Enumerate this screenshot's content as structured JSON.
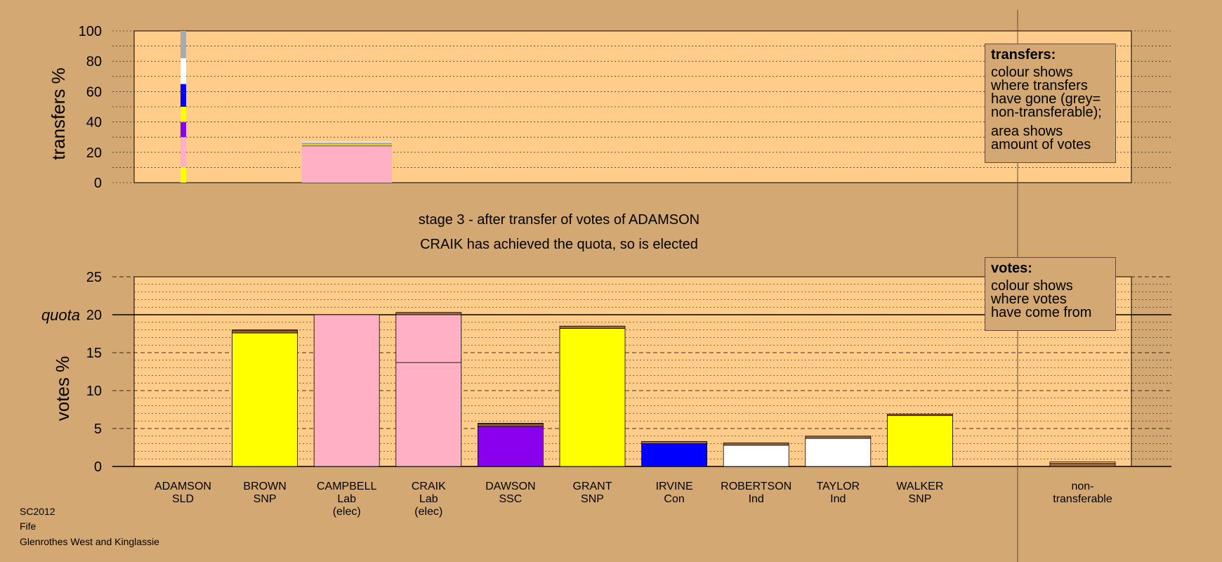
{
  "meta": {
    "code": "SC2012",
    "council": "Fife",
    "ward": "Glenrothes West and Kinglassie"
  },
  "stage_title": "stage 3 - after transfer of votes of ADAMSON",
  "stage_subtitle": "CRAIK has achieved the quota, so is elected",
  "legend_transfers": {
    "title": "transfers:",
    "lines": [
      "colour shows",
      "where transfers",
      "have gone (grey=",
      "non-transferable);"
    ],
    "lines2": [
      "area shows",
      "amount of votes"
    ]
  },
  "legend_votes": {
    "title": "votes:",
    "lines": [
      "colour shows",
      "where votes",
      "have come from"
    ]
  },
  "colors": {
    "background": "#d4a872",
    "plot": "#ffcc8a",
    "SLD": "#ffff00",
    "Lab": "#ffb0c4",
    "SNP": "#ffff00",
    "SSC": "#8800ee",
    "Con": "#0000ff",
    "Ind": "#ffffff",
    "nontransferable": "#aaaaaa",
    "carry": "#a86838"
  },
  "chart_data": [
    {
      "type": "bar",
      "ylabel": "transfers %",
      "ylim": [
        0,
        100
      ],
      "yticks": [
        0,
        20,
        40,
        60,
        80,
        100
      ],
      "transfer_strip": [
        {
          "to": "GRANT",
          "color": "#ffff00",
          "from": 0,
          "to_pct": 10
        },
        {
          "to": "CAMPBELL",
          "color": "#ffb0c4",
          "from": 10,
          "to_pct": 30
        },
        {
          "to": "DAWSON",
          "color": "#8800ee",
          "from": 30,
          "to_pct": 40
        },
        {
          "to": "BROWN",
          "color": "#ffff00",
          "from": 40,
          "to_pct": 50
        },
        {
          "to": "IRVINE",
          "color": "#0000ff",
          "from": 50,
          "to_pct": 65
        },
        {
          "to": "ROBERTSON",
          "color": "#ffffff",
          "from": 65,
          "to_pct": 74
        },
        {
          "to": "TAYLOR",
          "color": "#ffffff",
          "from": 74,
          "to_pct": 82
        },
        {
          "to": "non-transferable",
          "color": "#aaaaaa",
          "from": 82,
          "to_pct": 100
        }
      ],
      "transfer_block": {
        "position": "CAMPBELL",
        "segments": [
          {
            "color": "#ffb0c4",
            "value": 24
          },
          {
            "color": "#8800ee",
            "value": 0.5
          },
          {
            "color": "#ffff00",
            "value": 0.5
          },
          {
            "color": "#aaaaaa",
            "value": 1.5
          },
          {
            "color": "#ffffff",
            "value": 0.5
          }
        ]
      }
    },
    {
      "type": "bar",
      "ylabel": "votes %",
      "ylim": [
        0,
        25
      ],
      "yticks": [
        0,
        5,
        10,
        15,
        20,
        25
      ],
      "quota": 20,
      "quota_label": "quota",
      "candidates": [
        {
          "name": "ADAMSON",
          "party": "SLD",
          "note": "",
          "segments": []
        },
        {
          "name": "BROWN",
          "party": "SNP",
          "note": "",
          "segments": [
            {
              "color": "#ffff00",
              "value": 17.6
            },
            {
              "color": "#a86838",
              "value": 0.3
            },
            {
              "color": "#ffcc8a",
              "value": 0.1
            }
          ]
        },
        {
          "name": "CAMPBELL",
          "party": "Lab",
          "note": "(elec)",
          "segments": [
            {
              "color": "#ffb0c4",
              "value": 20.0
            }
          ]
        },
        {
          "name": "CRAIK",
          "party": "Lab",
          "note": "(elec)",
          "segments": [
            {
              "color": "#ffb0c4",
              "value": 13.7
            },
            {
              "color": "#ffb0c4",
              "value": 6.3
            },
            {
              "color": "#a86838",
              "value": 0.3
            }
          ]
        },
        {
          "name": "DAWSON",
          "party": "SSC",
          "note": "",
          "segments": [
            {
              "color": "#8800ee",
              "value": 5.3
            },
            {
              "color": "#a86838",
              "value": 0.3
            },
            {
              "color": "#ffcc8a",
              "value": 0.1
            }
          ]
        },
        {
          "name": "GRANT",
          "party": "SNP",
          "note": "",
          "segments": [
            {
              "color": "#ffff00",
              "value": 18.2
            },
            {
              "color": "#a86838",
              "value": 0.3
            }
          ]
        },
        {
          "name": "IRVINE",
          "party": "Con",
          "note": "",
          "segments": [
            {
              "color": "#0000ff",
              "value": 3.0
            },
            {
              "color": "#a86838",
              "value": 0.3
            }
          ]
        },
        {
          "name": "ROBERTSON",
          "party": "Ind",
          "note": "",
          "segments": [
            {
              "color": "#ffffff",
              "value": 2.8
            },
            {
              "color": "#a86838",
              "value": 0.3
            }
          ]
        },
        {
          "name": "TAYLOR",
          "party": "Ind",
          "note": "",
          "segments": [
            {
              "color": "#ffffff",
              "value": 3.7
            },
            {
              "color": "#a86838",
              "value": 0.3
            }
          ]
        },
        {
          "name": "WALKER",
          "party": "SNP",
          "note": "",
          "segments": [
            {
              "color": "#ffff00",
              "value": 6.7
            },
            {
              "color": "#a86838",
              "value": 0.2
            }
          ]
        }
      ],
      "nontransferable": {
        "label_line1": "non-",
        "label_line2": "transferable",
        "segments": [
          {
            "color": "#a86838",
            "value": 0.4
          },
          {
            "color": "#ffcc8a",
            "value": 0.2
          }
        ]
      }
    }
  ]
}
